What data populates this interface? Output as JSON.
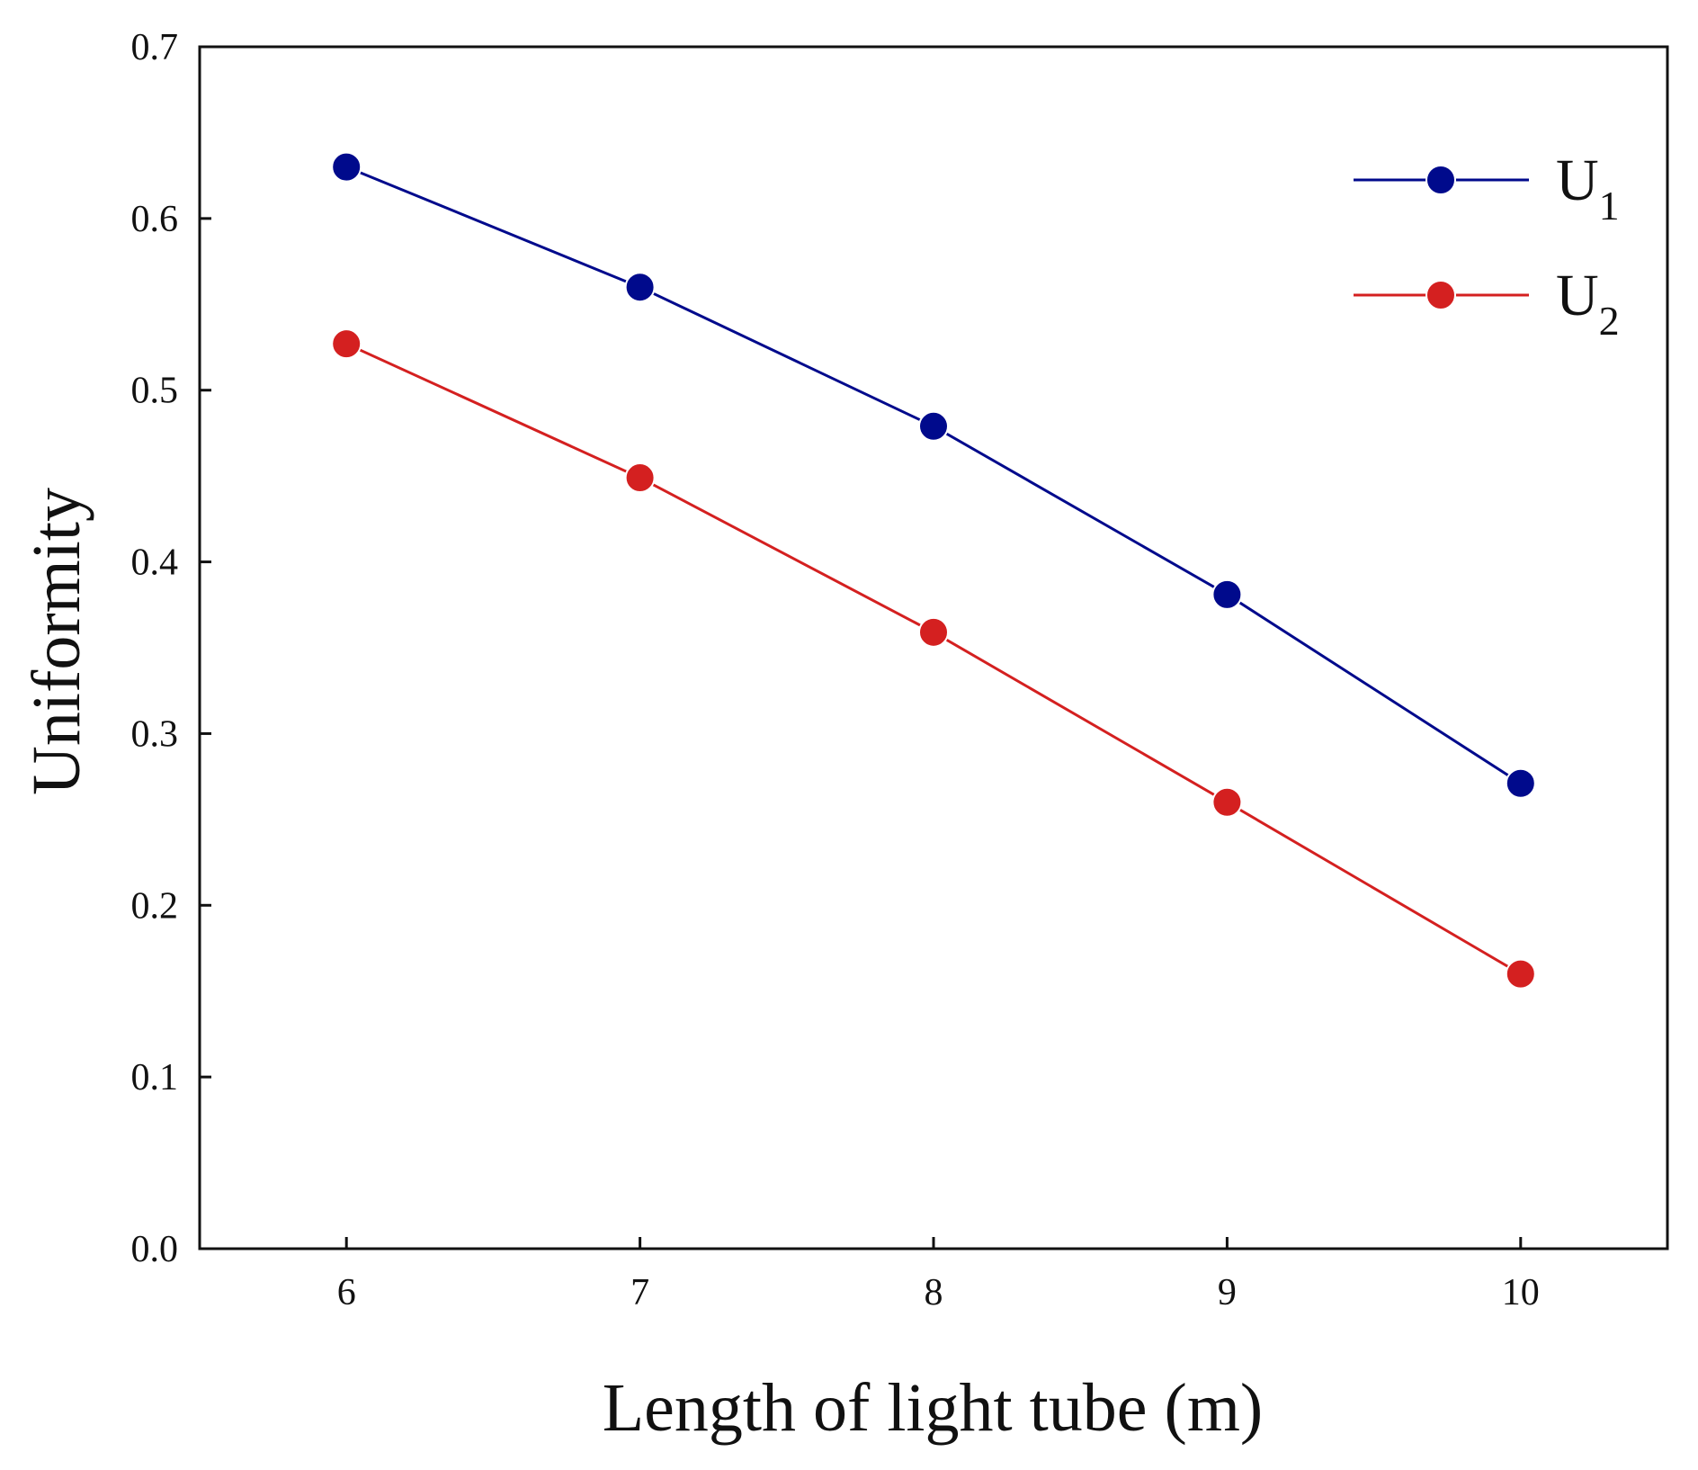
{
  "chart_data": {
    "type": "line",
    "title": "",
    "xlabel": "Length of light tube (m)",
    "ylabel": "Uniformity",
    "x": [
      6,
      7,
      8,
      9,
      10
    ],
    "x_tick_labels": [
      "6",
      "7",
      "8",
      "9",
      "10"
    ],
    "y_tick_labels": [
      "0.0",
      "0.1",
      "0.2",
      "0.3",
      "0.4",
      "0.5",
      "0.6",
      "0.7"
    ],
    "xlim": [
      5.5,
      10.5
    ],
    "ylim": [
      0.0,
      0.7
    ],
    "grid": false,
    "legend_position": "top-right",
    "series": [
      {
        "name": "U1",
        "base": "U",
        "sub": "1",
        "color": "#000a8c",
        "values": [
          0.63,
          0.56,
          0.479,
          0.381,
          0.271
        ]
      },
      {
        "name": "U2",
        "base": "U",
        "sub": "2",
        "color": "#d42020",
        "values": [
          0.527,
          0.449,
          0.359,
          0.26,
          0.16
        ]
      }
    ]
  }
}
